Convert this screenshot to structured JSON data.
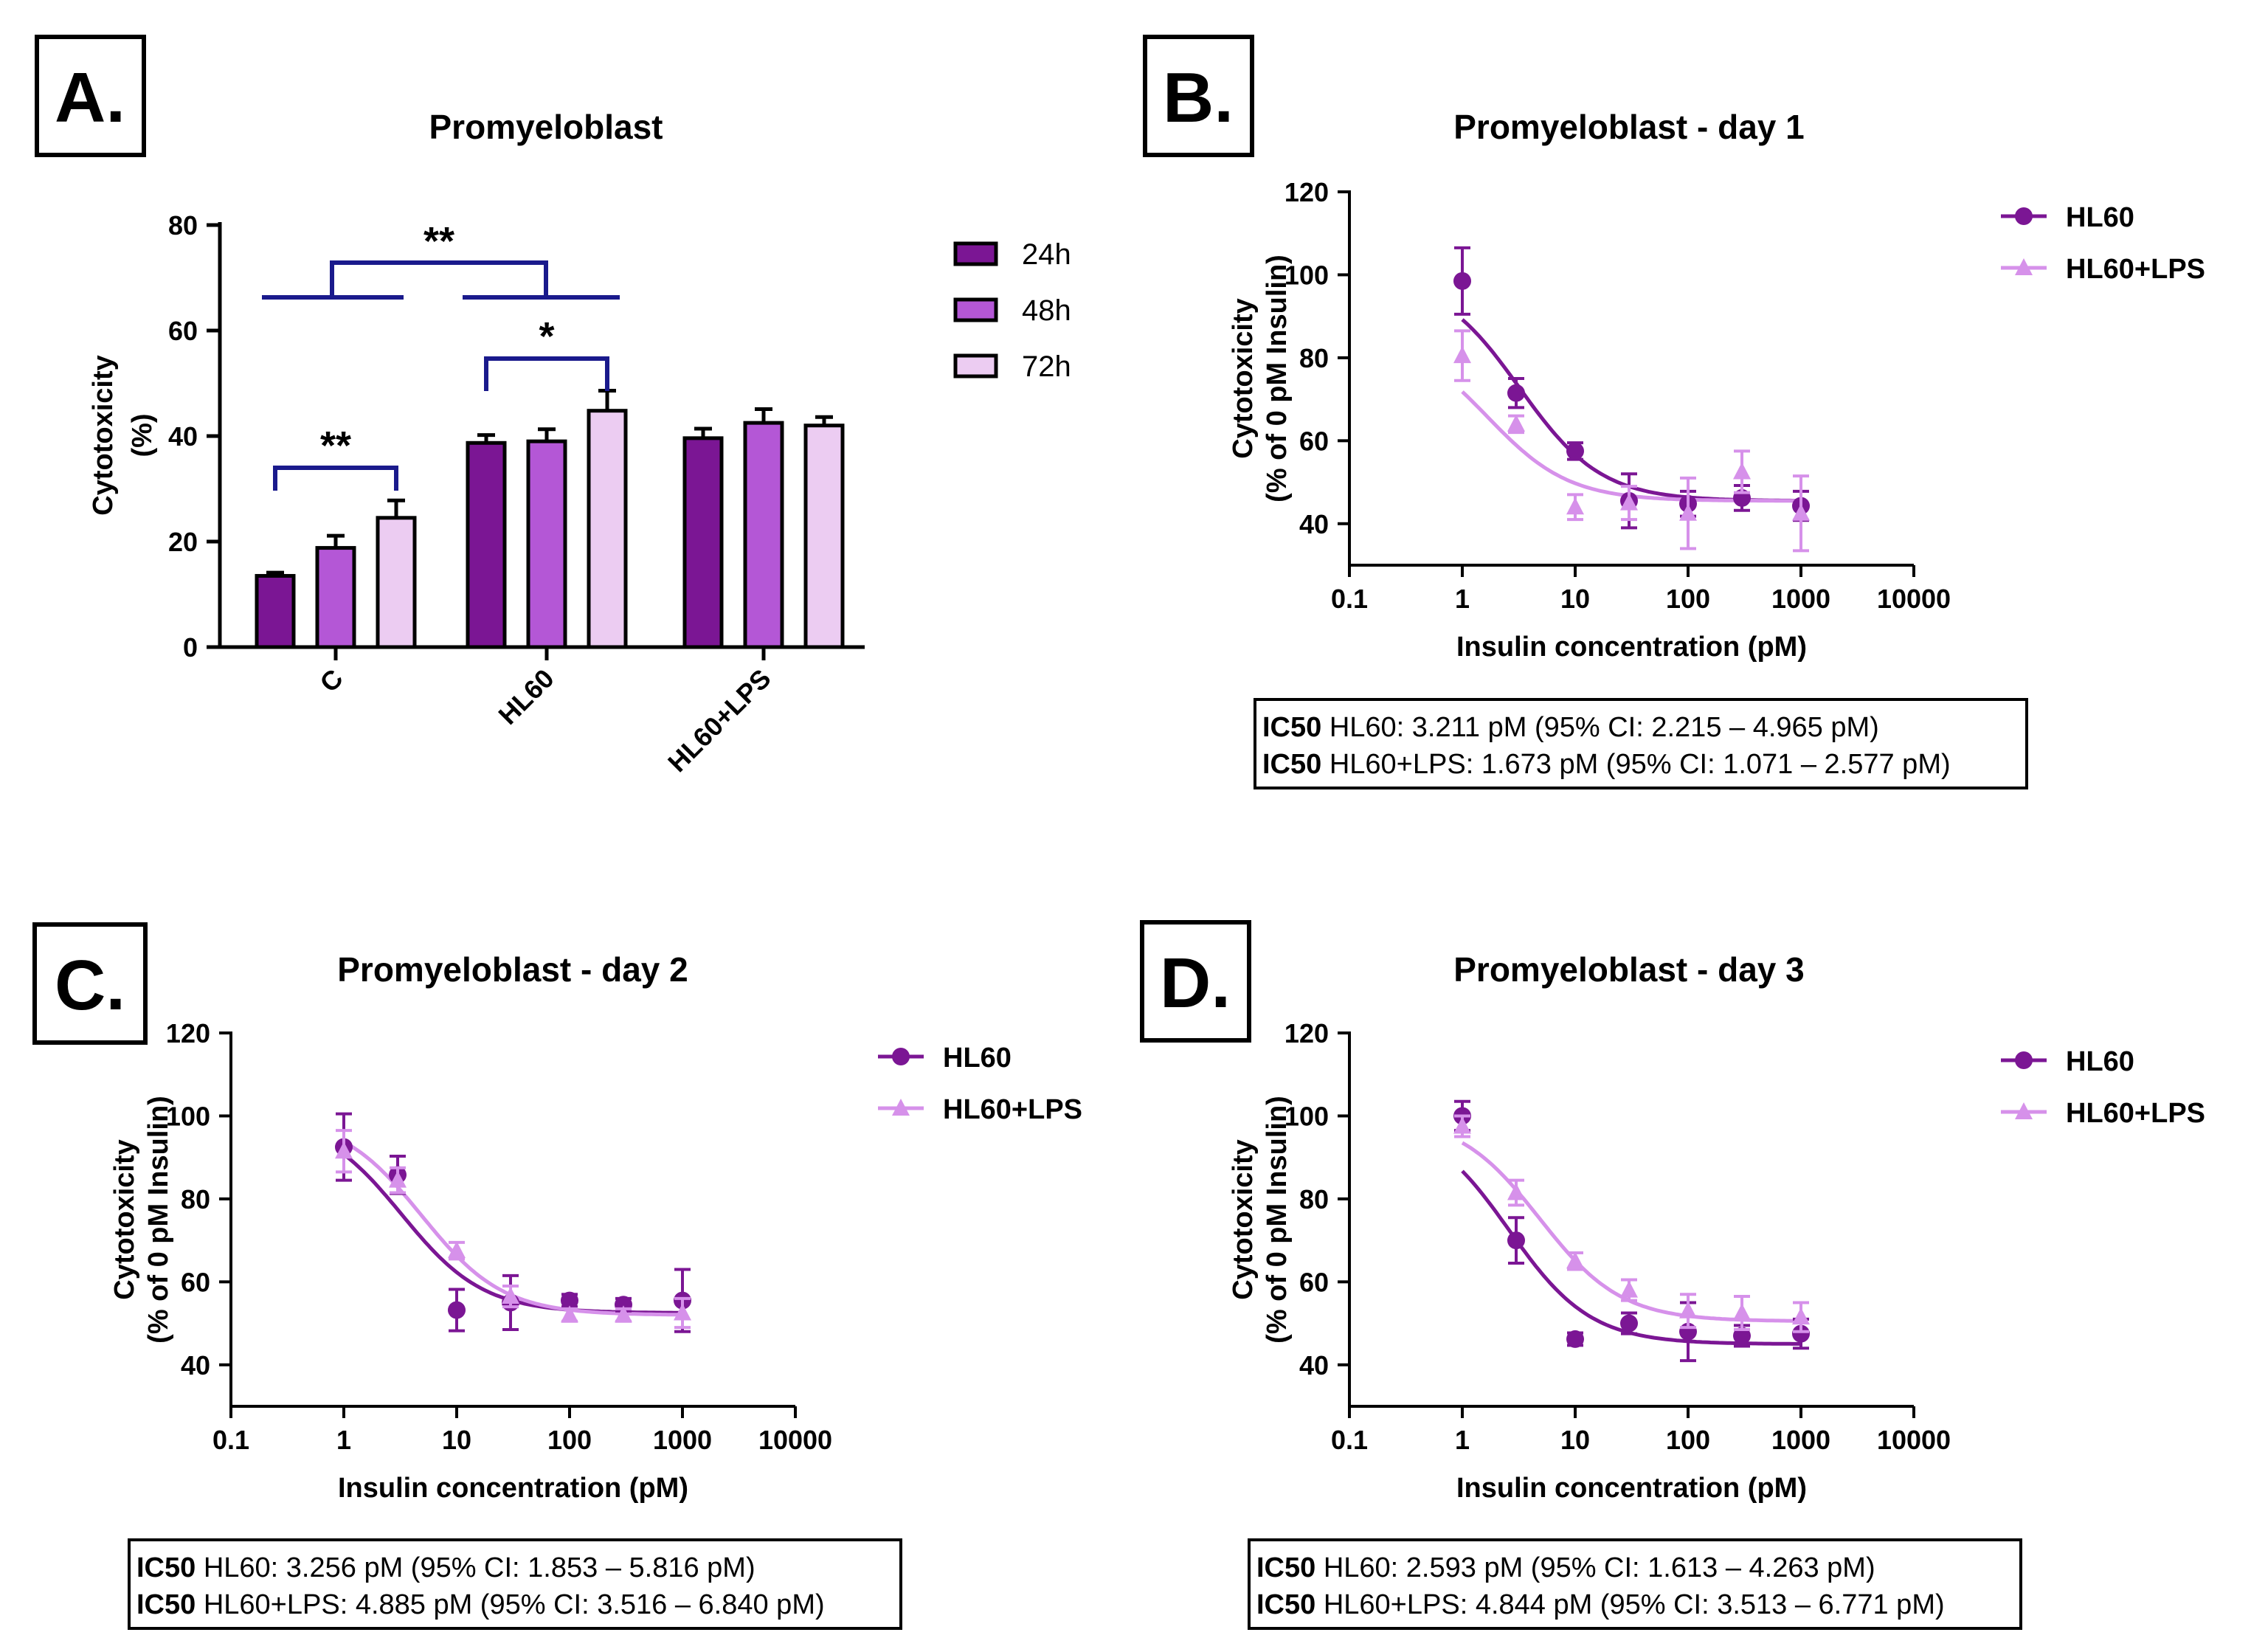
{
  "panel_labels": [
    "A.",
    "B.",
    "C.",
    "D."
  ],
  "colors": {
    "dark": "#7b1694",
    "mid": "#b457d6",
    "light": "#ecccf2",
    "lpsCurve": "#d691ea",
    "sig": "#1a1a8c"
  },
  "chart_data": [
    {
      "type": "bar",
      "title": "Promyeloblast",
      "ylabel": "Cytotoxicity\n(%)",
      "xlabel": "",
      "ylim": [
        0,
        80
      ],
      "yticks": [
        0,
        20,
        40,
        60,
        80
      ],
      "categories": [
        "C",
        "HL60",
        "HL60+LPS"
      ],
      "series": [
        {
          "name": "24h",
          "values": [
            13.5,
            38.7,
            39.6
          ],
          "errors": [
            0.6,
            1.5,
            1.8
          ]
        },
        {
          "name": "48h",
          "values": [
            18.8,
            39.0,
            42.5
          ],
          "errors": [
            2.3,
            2.3,
            2.6
          ]
        },
        {
          "name": "72h",
          "values": [
            24.5,
            44.8,
            42.0
          ],
          "errors": [
            3.3,
            3.8,
            1.6
          ]
        }
      ],
      "significance": [
        {
          "label": "**",
          "between": "C: 24h vs 72h"
        },
        {
          "label": "*",
          "between": "HL60: 24h vs 72h"
        },
        {
          "label": "**",
          "between": "C vs HL60"
        }
      ]
    },
    {
      "type": "scatter",
      "title": "Promyeloblast - day 1",
      "ylabel": "Cytotoxicity\n(% of 0 pM Insulin)",
      "xlabel": "Insulin concentration (pM)",
      "xscale": "log",
      "xlim": [
        0.1,
        10000
      ],
      "xticks": [
        "0.1",
        "1",
        "10",
        "100",
        "1000",
        "10000"
      ],
      "ylim": [
        30,
        120
      ],
      "yticks": [
        40,
        60,
        80,
        100,
        120
      ],
      "x": [
        1,
        3,
        10,
        30,
        100,
        300,
        1000
      ],
      "legend_position": "top-right",
      "series": [
        {
          "name": "HL60",
          "values": [
            98.5,
            71.5,
            57.5,
            45.5,
            44.8,
            46.2,
            44.3
          ],
          "errors": [
            8,
            3.5,
            2,
            6.5,
            3,
            3,
            3.5
          ],
          "fit": {
            "top": 100,
            "bottom": 45.5,
            "ic50": 3.211
          }
        },
        {
          "name": "HL60+LPS",
          "values": [
            80.5,
            64.0,
            44.0,
            45.0,
            42.5,
            52.5,
            42.5
          ],
          "errors": [
            6,
            2,
            3,
            4,
            8.5,
            5,
            9
          ],
          "fit": {
            "top": 86,
            "bottom": 45.5,
            "ic50": 1.673
          }
        }
      ],
      "ic50_box": [
        {
          "bold": "IC50",
          "text": " HL60: 3.211 pM (95% CI: 2.215 – 4.965 pM)"
        },
        {
          "bold": "IC50",
          "text": " HL60+LPS: 1.673 pM (95% CI: 1.071 – 2.577 pM)"
        }
      ]
    },
    {
      "type": "scatter",
      "title": "Promyeloblast - day 2",
      "ylabel": "Cytotoxicity\n(% of 0 pM Insulin)",
      "xlabel": "Insulin concentration (pM)",
      "xscale": "log",
      "xlim": [
        0.1,
        10000
      ],
      "xticks": [
        "0.1",
        "1",
        "10",
        "100",
        "1000",
        "10000"
      ],
      "ylim": [
        30,
        120
      ],
      "yticks": [
        40,
        60,
        80,
        100,
        120
      ],
      "x": [
        1,
        3,
        10,
        30,
        100,
        300,
        1000
      ],
      "legend_position": "top-right",
      "series": [
        {
          "name": "HL60",
          "values": [
            92.5,
            85.8,
            53.2,
            55.0,
            55.5,
            54.5,
            55.5
          ],
          "errors": [
            8,
            4.5,
            5,
            6.5,
            1.5,
            1.5,
            7.5
          ],
          "fit": {
            "top": 100,
            "bottom": 52.5,
            "ic50": 3.256
          }
        },
        {
          "name": "HL60+LPS",
          "values": [
            91.5,
            84.5,
            67.5,
            56.5,
            52.0,
            52.0,
            52.5
          ],
          "errors": [
            5,
            3,
            2,
            2.5,
            1.5,
            1.5,
            3.5
          ],
          "fit": {
            "top": 100,
            "bottom": 52.0,
            "ic50": 4.885
          }
        }
      ],
      "ic50_box": [
        {
          "bold": "IC50",
          "text": " HL60: 3.256 pM (95% CI: 1.853 – 5.816 pM)"
        },
        {
          "bold": "IC50",
          "text": " HL60+LPS: 4.885 pM (95% CI: 3.516 – 6.840 pM)"
        }
      ]
    },
    {
      "type": "scatter",
      "title": "Promyeloblast - day 3",
      "ylabel": "Cytotoxicity\n(% of 0 pM Insulin)",
      "xlabel": "Insulin concentration (pM)",
      "xscale": "log",
      "xlim": [
        0.1,
        10000
      ],
      "xticks": [
        "0.1",
        "1",
        "10",
        "100",
        "1000",
        "10000"
      ],
      "ylim": [
        30,
        120
      ],
      "yticks": [
        40,
        60,
        80,
        100,
        120
      ],
      "x": [
        1,
        3,
        10,
        30,
        100,
        300,
        1000
      ],
      "legend_position": "top-right",
      "series": [
        {
          "name": "HL60",
          "values": [
            100.0,
            70.0,
            46.2,
            50.0,
            48.0,
            47.0,
            47.5
          ],
          "errors": [
            3.5,
            5.5,
            1.5,
            2.5,
            7,
            2.5,
            3.5
          ],
          "fit": {
            "top": 100,
            "bottom": 45.0,
            "ic50": 2.593
          }
        },
        {
          "name": "HL60+LPS",
          "values": [
            97.5,
            81.5,
            65.0,
            58.0,
            53.0,
            52.5,
            51.5
          ],
          "errors": [
            2.5,
            3,
            2,
            2.5,
            4,
            4,
            3.5
          ],
          "fit": {
            "top": 100,
            "bottom": 50.5,
            "ic50": 4.844
          }
        }
      ],
      "ic50_box": [
        {
          "bold": "IC50",
          "text": " HL60: 2.593 pM (95% CI: 1.613 – 4.263 pM)"
        },
        {
          "bold": "IC50",
          "text": " HL60+LPS: 4.844 pM (95% CI: 3.513 – 6.771 pM)"
        }
      ]
    }
  ]
}
